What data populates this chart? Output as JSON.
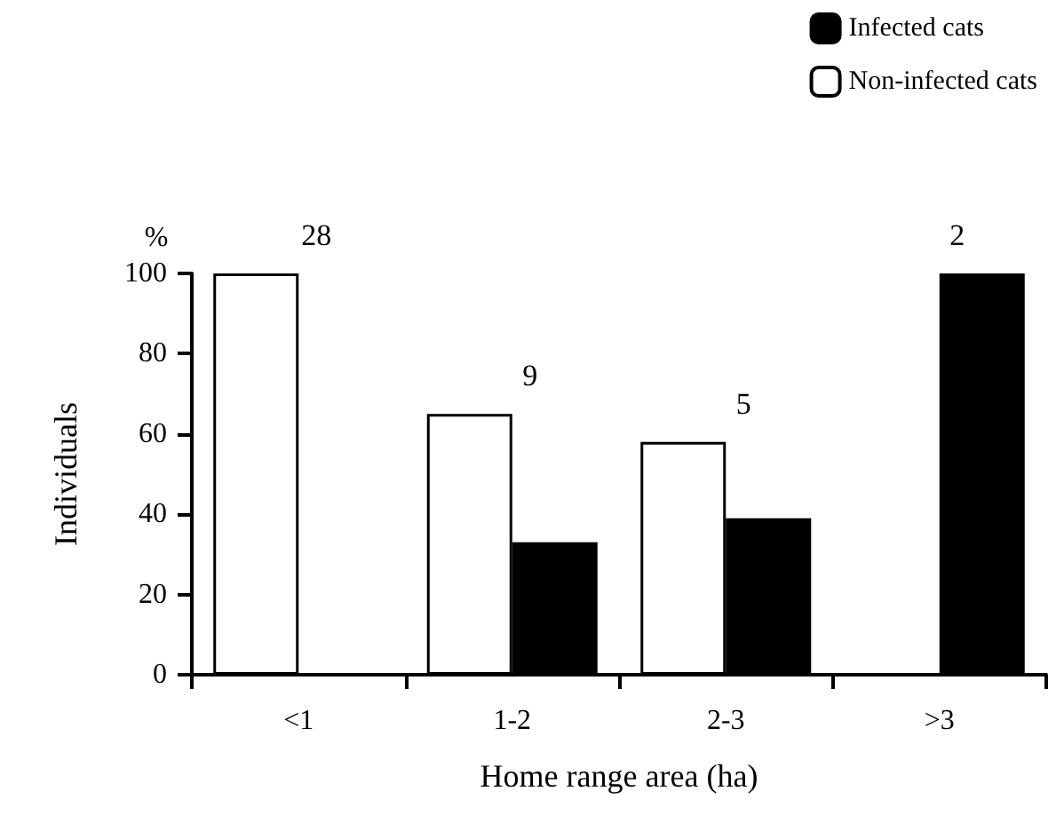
{
  "chart_data": {
    "type": "bar",
    "xlabel": "Home range area (ha)",
    "ylabel": "Individuals",
    "categories": [
      "<1",
      "1-2",
      "2-3",
      ">3"
    ],
    "series": [
      {
        "name": "Non-infected cats",
        "color": "#ffffff",
        "values": [
          100,
          65,
          58,
          0
        ]
      },
      {
        "name": "Infected cats",
        "color": "#000000",
        "values": [
          0,
          33,
          39,
          100
        ]
      }
    ],
    "ylim": [
      0,
      100
    ],
    "yticks": [
      0,
      20,
      40,
      60,
      80,
      100
    ],
    "grid": false,
    "legend": "top right",
    "annotations": [
      "%",
      "28",
      "9",
      "5",
      "2"
    ]
  }
}
